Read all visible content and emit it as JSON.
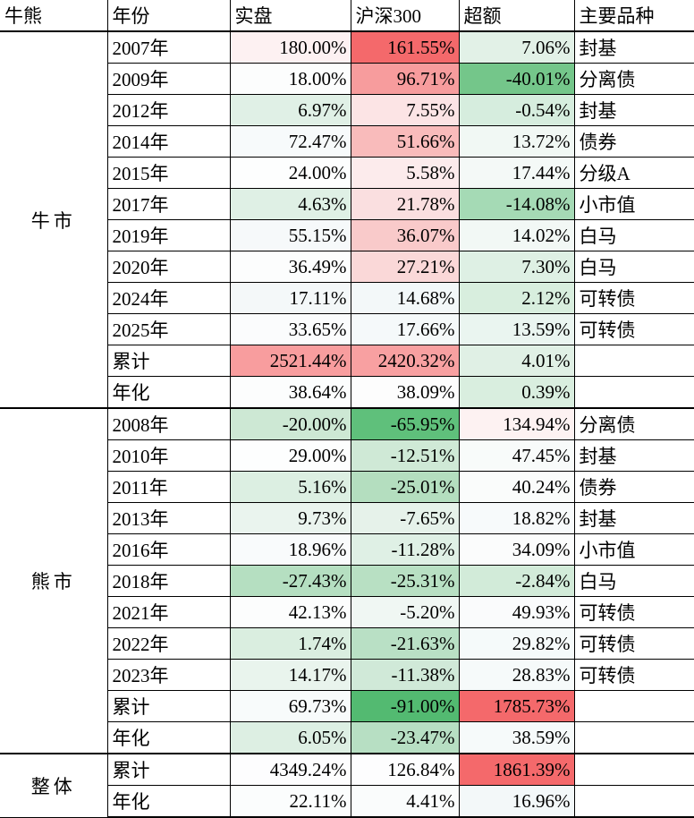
{
  "chart_data": {
    "type": "table",
    "header": [
      "牛熊",
      "年份",
      "实盘",
      "沪深300",
      "超额",
      "主要品种"
    ],
    "column_roles": [
      "group",
      "year",
      "actual_return",
      "csi300_return",
      "excess_return",
      "main_variety"
    ],
    "scale_colors": {
      "strong_red": "#f4696b",
      "salmon": "#f8a0a1",
      "white_mid": "#fcfdfd",
      "light_green": "#d8eede",
      "strong_green": "#53ba71"
    },
    "sections": [
      {
        "label": "牛市",
        "rows": [
          {
            "year": "2007年",
            "actual": "180.00%",
            "index": "161.55%",
            "excess": "7.06%",
            "variety": "封基",
            "bg": [
              "#fdf1f2",
              "#f4696b",
              "#e2f1e7"
            ]
          },
          {
            "year": "2009年",
            "actual": "18.00%",
            "index": "96.71%",
            "excess": "-40.01%",
            "variety": "分离债",
            "bg": [
              "#fcfdfd",
              "#f79c9d",
              "#74c68a"
            ]
          },
          {
            "year": "2012年",
            "actual": "6.97%",
            "index": "7.55%",
            "excess": "-0.54%",
            "variety": "封基",
            "bg": [
              "#e0f0e6",
              "#fce4e5",
              "#d6edde"
            ]
          },
          {
            "year": "2014年",
            "actual": "72.47%",
            "index": "51.66%",
            "excess": "13.72%",
            "variety": "债券",
            "bg": [
              "#f7fafb",
              "#f9bbbb",
              "#f1f8f4"
            ]
          },
          {
            "year": "2015年",
            "actual": "24.00%",
            "index": "5.58%",
            "excess": "17.44%",
            "variety": "分级A",
            "bg": [
              "#fdfefe",
              "#fcebec",
              "#f4f9f7"
            ]
          },
          {
            "year": "2017年",
            "actual": "4.63%",
            "index": "21.78%",
            "excess": "-14.08%",
            "variety": "小市值",
            "bg": [
              "#dff0e5",
              "#fadfe0",
              "#a5dab5"
            ]
          },
          {
            "year": "2019年",
            "actual": "55.15%",
            "index": "36.07%",
            "excess": "14.02%",
            "variety": "白马",
            "bg": [
              "#f6f9fa",
              "#f9caca",
              "#f2f8f5"
            ]
          },
          {
            "year": "2020年",
            "actual": "36.49%",
            "index": "27.21%",
            "excess": "7.30%",
            "variety": "白马",
            "bg": [
              "#fcfdfd",
              "#fad8d8",
              "#def0e4"
            ]
          },
          {
            "year": "2024年",
            "actual": "17.11%",
            "index": "14.68%",
            "excess": "2.12%",
            "variety": "可转债",
            "bg": [
              "#f4f8f9",
              "#f3f8f9",
              "#d8eede"
            ]
          },
          {
            "year": "2025年",
            "actual": "33.65%",
            "index": "17.66%",
            "excess": "13.59%",
            "variety": "可转债",
            "bg": [
              "#fbfcfd",
              "#f5f9fa",
              "#eaf5f0"
            ]
          },
          {
            "year": "累计",
            "actual": "2521.44%",
            "index": "2420.32%",
            "excess": "4.01%",
            "variety": "",
            "bg": [
              "#f89d9e",
              "#f8a0a1",
              "#e0f0e5"
            ]
          },
          {
            "year": "年化",
            "actual": "38.64%",
            "index": "38.09%",
            "excess": "0.39%",
            "variety": "",
            "bg": [
              "#fcfdfd",
              "#fdfdfd",
              "#d9eedf"
            ]
          }
        ]
      },
      {
        "label": "熊市",
        "rows": [
          {
            "year": "2008年",
            "actual": "-20.00%",
            "index": "-65.95%",
            "excess": "134.94%",
            "variety": "分离债",
            "bg": [
              "#cde8d4",
              "#5fc07b",
              "#fdf2f2"
            ]
          },
          {
            "year": "2010年",
            "actual": "29.00%",
            "index": "-12.51%",
            "excess": "47.45%",
            "variety": "封基",
            "bg": [
              "#fdfefe",
              "#cfe9d6",
              "#f8fbfa"
            ]
          },
          {
            "year": "2011年",
            "actual": "5.16%",
            "index": "-25.01%",
            "excess": "40.24%",
            "variety": "债券",
            "bg": [
              "#dcefe2",
              "#b4debf",
              "#fafcfb"
            ]
          },
          {
            "year": "2013年",
            "actual": "9.73%",
            "index": "-7.65%",
            "excess": "18.82%",
            "variety": "封基",
            "bg": [
              "#eaf4ee",
              "#e6f2ea",
              "#f7fafb"
            ]
          },
          {
            "year": "2016年",
            "actual": "18.96%",
            "index": "-11.28%",
            "excess": "34.09%",
            "variety": "小市值",
            "bg": [
              "#f9fbfc",
              "#dff0e5",
              "#fbfcfc"
            ]
          },
          {
            "year": "2018年",
            "actual": "-27.43%",
            "index": "-25.31%",
            "excess": "-2.84%",
            "variety": "白马",
            "bg": [
              "#b5dfc1",
              "#b8e0c3",
              "#d2ebd9"
            ]
          },
          {
            "year": "2021年",
            "actual": "42.13%",
            "index": "-5.20%",
            "excess": "49.93%",
            "variety": "可转债",
            "bg": [
              "#fcfdfd",
              "#f0f7f3",
              "#fafbfc"
            ]
          },
          {
            "year": "2022年",
            "actual": "1.74%",
            "index": "-21.63%",
            "excess": "29.82%",
            "variety": "可转债",
            "bg": [
              "#daeee0",
              "#b9e0c5",
              "#f5fafa"
            ]
          },
          {
            "year": "2023年",
            "actual": "14.17%",
            "index": "-11.38%",
            "excess": "28.83%",
            "variety": "可转债",
            "bg": [
              "#e9f4ed",
              "#d0e9d8",
              "#f6fafa"
            ]
          },
          {
            "year": "累计",
            "actual": "69.73%",
            "index": "-91.00%",
            "excess": "1785.73%",
            "variety": "",
            "bg": [
              "#f8fbfb",
              "#53ba71",
              "#f4696b"
            ]
          },
          {
            "year": "年化",
            "actual": "6.05%",
            "index": "-23.47%",
            "excess": "38.59%",
            "variety": "",
            "bg": [
              "#ddefe3",
              "#b7dfc3",
              "#f6fafa"
            ]
          }
        ]
      },
      {
        "label": "整体",
        "rows": [
          {
            "year": "累计",
            "actual": "4349.24%",
            "index": "126.84%",
            "excess": "1861.39%",
            "variety": "",
            "bg": [
              "#fdfdfe",
              "#fdfdfe",
              "#f4696b"
            ]
          },
          {
            "year": "年化",
            "actual": "22.11%",
            "index": "4.41%",
            "excess": "16.96%",
            "variety": "",
            "bg": [
              "#fbfdfd",
              "#fafcfc",
              "#f3f8f9"
            ]
          }
        ]
      }
    ]
  }
}
